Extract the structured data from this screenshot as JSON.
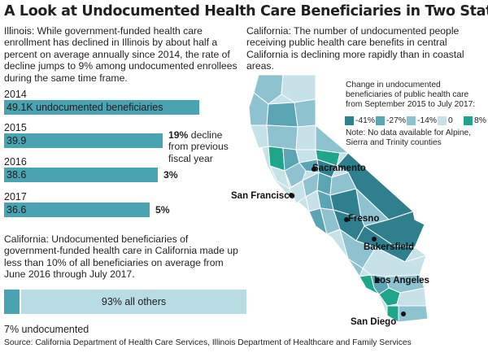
{
  "title": "A Look at Undocumented Health Care Beneficiaries in Two States",
  "illinois_intro": "Illinois: While government-funded health care enrollment has declined in Illinois by about half a percent on average annually since 2014, the rate of decline jumps to 9% among undocumented enrollees during the same time frame.",
  "california_map_intro": "California: The number of undocumented people receiving public health care benefits in central California is declining more rapidly than in coastal areas.",
  "california_bar_intro": "California: Undocumented beneficiaries of government-funded health care in California made up less than 10% of all beneficiaries on average from June 2016 through July 2017.",
  "source": "Source: California Department of Health Care Services, Illinois Department of Healthcare and Family Services",
  "colors": {
    "bar": "#4aa3b1",
    "light": "#b9dce4",
    "neg41": "#2f7f8f",
    "neg27": "#5aa4b4",
    "neg14": "#8fc2cf",
    "zero": "#c6e1e8",
    "pos8": "#1fa58a",
    "map_line": "#ffffff"
  },
  "chart_data": [
    {
      "type": "bar",
      "orientation": "horizontal",
      "categories": [
        "2014",
        "2015",
        "2016",
        "2017"
      ],
      "values": [
        49.1,
        39.9,
        38.6,
        36.6
      ],
      "value_labels": [
        "49.1K undocumented beneficiaries",
        "39.9",
        "38.6",
        "36.6"
      ],
      "annotations": [
        {
          "category": "2015",
          "bold": "19%",
          "text": " decline from previous fiscal year",
          "lines": [
            "19% decline",
            "from previous",
            "fiscal year"
          ]
        },
        {
          "category": "2016",
          "bold": "3%",
          "text": ""
        },
        {
          "category": "2017",
          "bold": "5%",
          "text": ""
        }
      ],
      "xlim": [
        0,
        49.1
      ]
    },
    {
      "type": "bar",
      "orientation": "horizontal",
      "stacked": true,
      "categories": [
        "undocumented",
        "all others"
      ],
      "values": [
        7,
        93
      ],
      "labels": [
        "7% undocumented",
        "93% all others"
      ]
    },
    {
      "type": "choropleth",
      "legend_title": "Change in undocumented beneficiaries of public health care from September 2015 to July 2017:",
      "legend": [
        {
          "label": "-41%",
          "color_key": "neg41"
        },
        {
          "label": "-27%",
          "color_key": "neg27"
        },
        {
          "label": "-14%",
          "color_key": "neg14"
        },
        {
          "label": "0",
          "color_key": "zero"
        },
        {
          "label": "8%",
          "color_key": "pos8"
        }
      ],
      "note": "Note: No data available for Alpine, Sierra and Trinity counties",
      "cities": [
        "Sacramento",
        "San Francisco",
        "Fresno",
        "Bakersfield",
        "Los Angeles",
        "San Diego"
      ]
    }
  ]
}
